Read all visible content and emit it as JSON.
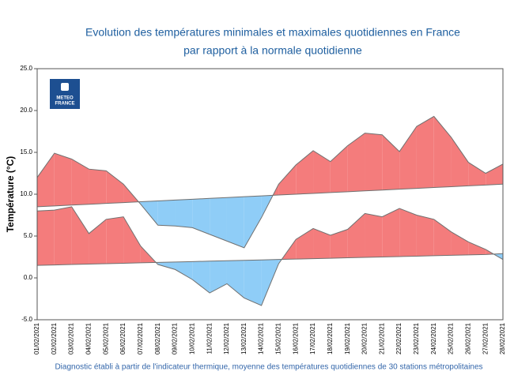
{
  "chart_data": {
    "type": "anomaly-band",
    "title": [
      "Evolution des températures minimales et maximales quotidiennes en France",
      "par rapport à la normale quotidienne"
    ],
    "y_label": "Température (°C)",
    "footnote": "Diagnostic établi à partir de l'indicateur thermique, moyenne des températures quotidiennes de 30 stations métropolitaines",
    "logo": [
      "METEO",
      "FRANCE"
    ],
    "categories": [
      "01/02/2021",
      "02/02/2021",
      "03/02/2021",
      "04/02/2021",
      "05/02/2021",
      "06/02/2021",
      "07/02/2021",
      "08/02/2021",
      "09/02/2021",
      "10/02/2021",
      "11/02/2021",
      "12/02/2021",
      "13/02/2021",
      "14/02/2021",
      "15/02/2021",
      "16/02/2021",
      "17/02/2021",
      "18/02/2021",
      "19/02/2021",
      "20/02/2021",
      "21/02/2021",
      "22/02/2021",
      "23/02/2021",
      "24/02/2021",
      "25/02/2021",
      "26/02/2021",
      "27/02/2021",
      "28/02/2021"
    ],
    "series": [
      {
        "values": [
          12.0,
          14.9,
          14.2,
          13.0,
          12.8,
          11.2,
          8.8,
          6.3,
          6.2,
          6.0,
          5.2,
          4.4,
          3.6,
          7.2,
          11.2,
          13.5,
          15.2,
          13.9,
          15.8,
          17.3,
          17.1,
          15.1,
          18.1,
          19.3,
          16.8,
          13.8,
          12.5,
          13.6
        ],
        "normal": [
          8.5,
          8.6,
          8.7,
          8.8,
          8.9,
          9.0,
          9.1,
          9.2,
          9.3,
          9.4,
          9.5,
          9.6,
          9.7,
          9.8,
          9.9,
          10.0,
          10.1,
          10.2,
          10.3,
          10.4,
          10.5,
          10.6,
          10.7,
          10.8,
          10.9,
          11.0,
          11.1,
          11.2
        ]
      },
      {
        "values": [
          8.0,
          8.1,
          8.5,
          5.3,
          7.0,
          7.3,
          3.8,
          1.6,
          1.0,
          -0.2,
          -1.8,
          -0.7,
          -2.4,
          -3.3,
          1.7,
          4.6,
          5.9,
          5.1,
          5.8,
          7.7,
          7.3,
          8.3,
          7.5,
          7.0,
          5.5,
          4.3,
          3.4,
          2.2
        ],
        "normal": [
          1.5,
          1.55,
          1.6,
          1.65,
          1.7,
          1.75,
          1.8,
          1.85,
          1.9,
          1.95,
          2.0,
          2.05,
          2.1,
          2.15,
          2.2,
          2.25,
          2.3,
          2.35,
          2.4,
          2.45,
          2.5,
          2.55,
          2.6,
          2.65,
          2.7,
          2.75,
          2.8,
          2.9
        ]
      }
    ],
    "colors": {
      "above": "#f47c7c",
      "below": "#8fcdf7",
      "line": "#707070"
    },
    "ylim": [
      -5,
      25
    ],
    "yticks": [
      {
        "value": -5,
        "label": "-5.0"
      },
      {
        "value": 0,
        "label": "0.0"
      },
      {
        "value": 5,
        "label": "5.0"
      },
      {
        "value": 10,
        "label": "10.0"
      },
      {
        "value": 15,
        "label": "15.0"
      },
      {
        "value": 20,
        "label": "20.0"
      },
      {
        "value": 25,
        "label": "25.0"
      }
    ]
  }
}
